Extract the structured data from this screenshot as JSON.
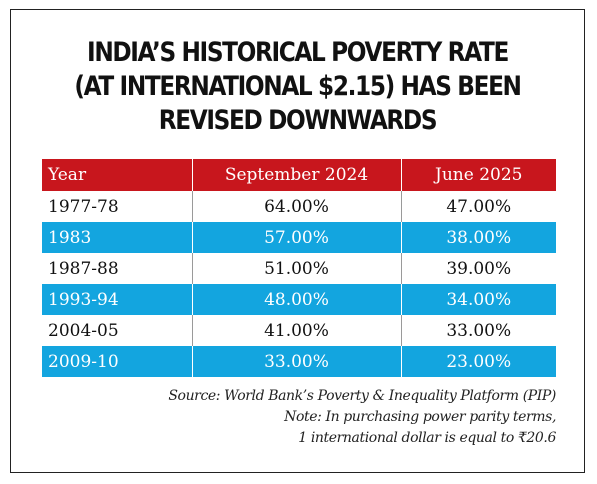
{
  "title_lines": [
    "INDIA’S HISTORICAL POVERTY RATE",
    "(AT INTERNATIONAL $2.15) HAS BEEN",
    "REVISED DOWNWARDS"
  ],
  "table": {
    "headers": [
      "Year",
      "September 2024",
      "June 2025"
    ],
    "rows": [
      [
        "1977-78",
        "64.00%",
        "47.00%"
      ],
      [
        "1983",
        "57.00%",
        "38.00%"
      ],
      [
        "1987-88",
        "51.00%",
        "39.00%"
      ],
      [
        "1993-94",
        "48.00%",
        "34.00%"
      ],
      [
        "2004-05",
        "41.00%",
        "33.00%"
      ],
      [
        "2009-10",
        "33.00%",
        "23.00%"
      ]
    ]
  },
  "chart_data": {
    "type": "table",
    "title": "INDIA’S HISTORICAL POVERTY RATE (AT INTERNATIONAL $2.15) HAS BEEN REVISED DOWNWARDS",
    "categories": [
      "1977-78",
      "1983",
      "1987-88",
      "1993-94",
      "2004-05",
      "2009-10"
    ],
    "series": [
      {
        "name": "September 2024",
        "values": [
          64.0,
          57.0,
          51.0,
          48.0,
          41.0,
          33.0
        ]
      },
      {
        "name": "June 2025",
        "values": [
          47.0,
          38.0,
          39.0,
          34.0,
          33.0,
          23.0
        ]
      }
    ]
  },
  "footnotes": {
    "source": "Source: World Bank’s Poverty & Inequality Platform (PIP)",
    "note_line1": "Note: In purchasing power parity terms,",
    "note_line2": "1 international dollar is equal to ₹20.6"
  },
  "colors": {
    "header_bg": "#c8161d",
    "alt_row_bg": "#13a5df",
    "text": "#111111"
  }
}
